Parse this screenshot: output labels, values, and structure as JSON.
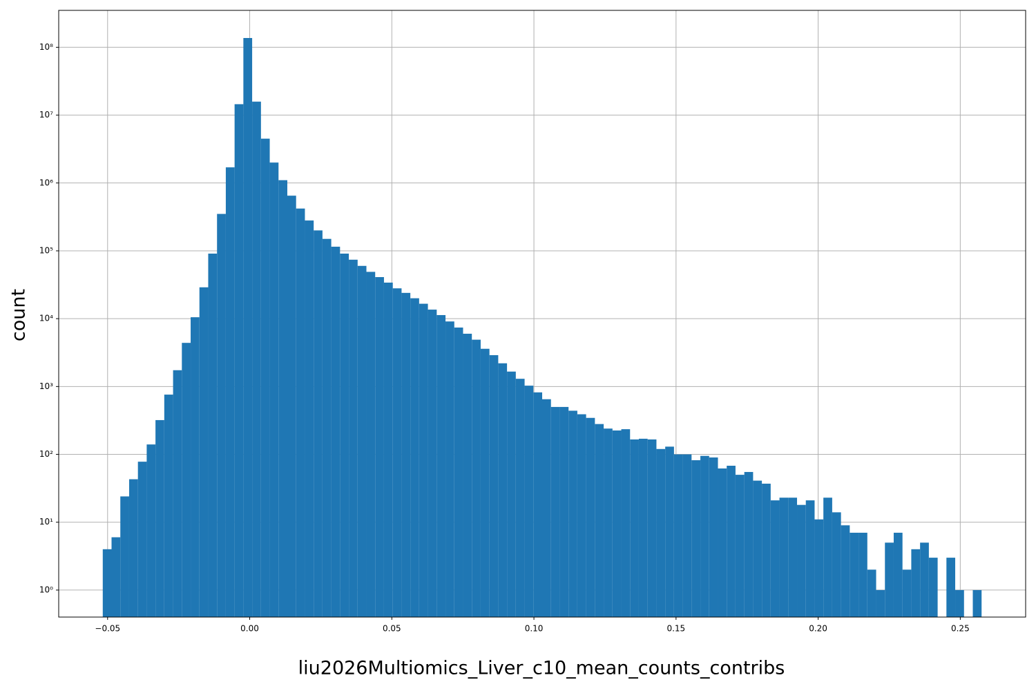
{
  "chart_data": {
    "type": "histogram",
    "x_label": "liu2026Multiomics_Liver_c10_mean_counts_contribs",
    "y_label": "count",
    "color": "#1f77b4",
    "log_y": true,
    "grid": true,
    "xlim": [
      -0.0672,
      0.273
    ],
    "ylim": [
      0.4,
      350000000
    ],
    "xticks": [
      {
        "value": -0.05,
        "label": "−0.05"
      },
      {
        "value": 0,
        "label": "0.00"
      },
      {
        "value": 0.05,
        "label": "0.05"
      },
      {
        "value": 0.1,
        "label": "0.10"
      },
      {
        "value": 0.15,
        "label": "0.15"
      },
      {
        "value": 0.2,
        "label": "0.20"
      },
      {
        "value": 0.25,
        "label": "0.25"
      }
    ],
    "yticks": [
      {
        "value": 1,
        "label": "10⁰"
      },
      {
        "value": 10,
        "label": "10¹"
      },
      {
        "value": 100,
        "label": "10²"
      },
      {
        "value": 1000,
        "label": "10³"
      },
      {
        "value": 10000,
        "label": "10⁴"
      },
      {
        "value": 100000,
        "label": "10⁵"
      },
      {
        "value": 1000000,
        "label": "10⁶"
      },
      {
        "value": 10000000,
        "label": "10⁷"
      },
      {
        "value": 100000000,
        "label": "10⁸"
      }
    ],
    "bins": [
      -0.0517,
      -0.04861,
      -0.04552,
      -0.04242,
      -0.03933,
      -0.03624,
      -0.03315,
      -0.03006,
      -0.02696,
      -0.02387,
      -0.02078,
      -0.01769,
      -0.0146,
      -0.0115,
      -0.00841,
      -0.00532,
      -0.00223,
      0.00086,
      0.00396,
      0.00705,
      0.01014,
      0.01323,
      0.01632,
      0.01942,
      0.02251,
      0.0256,
      0.02869,
      0.03178,
      0.03488,
      0.03797,
      0.04106,
      0.04415,
      0.04724,
      0.05034,
      0.05343,
      0.05652,
      0.05961,
      0.0627,
      0.0658,
      0.06889,
      0.07198,
      0.07507,
      0.07816,
      0.08126,
      0.08435,
      0.08744,
      0.09053,
      0.09362,
      0.09672,
      0.09981,
      0.1029,
      0.10599,
      0.10908,
      0.11218,
      0.11527,
      0.11836,
      0.12145,
      0.12454,
      0.12764,
      0.13073,
      0.13382,
      0.13691,
      0.14,
      0.1431,
      0.14619,
      0.14928,
      0.15237,
      0.15546,
      0.15856,
      0.16165,
      0.16474,
      0.16783,
      0.17092,
      0.17402,
      0.17711,
      0.1802,
      0.18329,
      0.18638,
      0.18948,
      0.19257,
      0.19566,
      0.19875,
      0.20184,
      0.20494,
      0.20803,
      0.21112,
      0.21421,
      0.2173,
      0.2204,
      0.22349,
      0.22658,
      0.22967,
      0.23276,
      0.23586,
      0.23895,
      0.24204,
      0.24513,
      0.24822,
      0.25132,
      0.25441,
      0.2575
    ],
    "values": [
      4,
      6,
      24,
      43,
      78,
      140,
      320,
      760,
      1740,
      4400,
      10500,
      29000,
      91000,
      350000,
      1700000,
      14500000,
      137000000,
      15800000,
      4500000,
      2000000,
      1100000,
      650000,
      420000,
      280000,
      200000,
      150000,
      115000,
      91000,
      74000,
      60000,
      49000,
      41000,
      34000,
      28000,
      24000,
      20000,
      16600,
      13600,
      11300,
      9100,
      7400,
      6000,
      4900,
      3600,
      2900,
      2200,
      1660,
      1300,
      1030,
      820,
      650,
      500,
      500,
      440,
      390,
      345,
      280,
      240,
      225,
      235,
      166,
      170,
      166,
      120,
      130,
      100,
      100,
      82,
      95,
      90,
      62,
      68,
      50,
      55,
      41,
      37,
      21,
      23,
      23,
      18,
      21,
      11,
      23,
      14,
      9,
      7,
      7,
      2,
      1,
      5,
      7,
      2,
      4,
      5,
      3,
      0,
      3,
      1,
      0,
      1
    ]
  }
}
